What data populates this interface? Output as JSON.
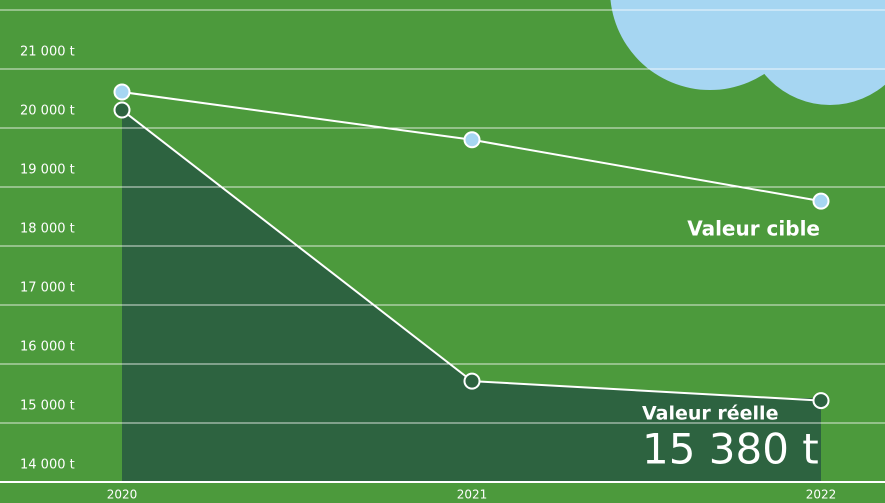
{
  "chart_data": {
    "type": "line",
    "categories": [
      "2020",
      "2021",
      "2022"
    ],
    "series": [
      {
        "name": "Valeur cible",
        "color": "#a6d6f2",
        "values": [
          20610,
          19800,
          18760
        ]
      },
      {
        "name": "Valeur réelle",
        "color": "#2d6340",
        "values": [
          20305,
          15710,
          15380
        ],
        "value_labels": [
          null,
          null,
          "15 380 t"
        ]
      }
    ],
    "ylim": [
      14000,
      22000
    ],
    "yticks": [
      {
        "value": 14000,
        "label": "14 000 t"
      },
      {
        "value": 15000,
        "label": "15 000 t"
      },
      {
        "value": 16000,
        "label": "16 000 t"
      },
      {
        "value": 17000,
        "label": "17 000 t"
      },
      {
        "value": 18000,
        "label": "18 000 t"
      },
      {
        "value": 19000,
        "label": "19 000 t"
      },
      {
        "value": 20000,
        "label": "20 000 t"
      },
      {
        "value": 21000,
        "label": "21 000 t"
      }
    ],
    "grid": true
  }
}
